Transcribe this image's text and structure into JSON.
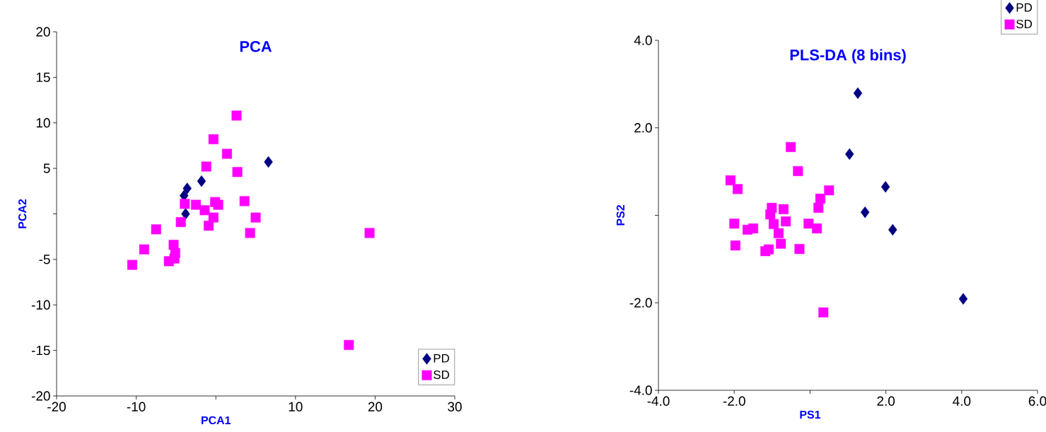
{
  "chart_data": [
    {
      "type": "scatter",
      "title": "PCA",
      "xlabel": "PCA1",
      "ylabel": "PCA2",
      "xlim": [
        -20,
        30
      ],
      "ylim": [
        -20,
        20
      ],
      "xticks": [
        -20,
        -10,
        {
          "value": 0,
          "label": null
        },
        10,
        20,
        30
      ],
      "yticks": [
        -20,
        -15,
        -10,
        -5,
        {
          "value": 0,
          "label": null
        },
        5,
        10,
        15,
        20
      ],
      "legend": "bottom right",
      "series": [
        {
          "name": "PD",
          "color": "#000080",
          "marker": "diamond",
          "x": [
            6.6,
            -1.8,
            -3.6,
            -4.0,
            -3.8
          ],
          "values": [
            5.7,
            3.6,
            2.8,
            2.0,
            0.0
          ]
        },
        {
          "name": "SD",
          "color": "#ff00ff",
          "marker": "square",
          "x": [
            2.6,
            -0.3,
            1.4,
            -1.2,
            2.7,
            -3.9,
            -2.5,
            -0.1,
            0.3,
            -1.4,
            -0.3,
            3.6,
            5.0,
            4.3,
            -0.9,
            -4.4,
            -7.5,
            -9.0,
            -10.5,
            -5.3,
            -5.1,
            -5.9,
            -5.2,
            19.3,
            16.7
          ],
          "values": [
            10.8,
            8.2,
            6.6,
            5.2,
            4.6,
            1.1,
            1.0,
            1.3,
            1.0,
            0.4,
            -0.4,
            1.4,
            -0.4,
            -2.1,
            -1.3,
            -0.9,
            -1.7,
            -3.9,
            -5.6,
            -3.4,
            -4.3,
            -5.2,
            -4.9,
            -2.1,
            -14.4
          ]
        }
      ]
    },
    {
      "type": "scatter",
      "title": "PLS-DA (8 bins)",
      "xlabel": "PS1",
      "ylabel": "PS2",
      "xlim": [
        -4,
        6
      ],
      "ylim": [
        -4,
        4
      ],
      "xticks": [
        {
          "value": -4,
          "label": "-4.0"
        },
        {
          "value": -2,
          "label": "-2.0"
        },
        {
          "value": 0,
          "label": null
        },
        {
          "value": 2,
          "label": "2.0"
        },
        {
          "value": 4,
          "label": "4.0"
        },
        {
          "value": 6,
          "label": "6.0"
        }
      ],
      "yticks": [
        {
          "value": -4,
          "label": "-4.0"
        },
        {
          "value": -2,
          "label": "-2.0"
        },
        {
          "value": 0,
          "label": null
        },
        {
          "value": 2,
          "label": "2.0"
        },
        {
          "value": 4,
          "label": "4.0"
        }
      ],
      "legend": "top right",
      "series": [
        {
          "name": "PD",
          "color": "#000080",
          "marker": "diamond",
          "x": [
            1.26,
            1.04,
            1.99,
            1.45,
            2.18,
            4.04
          ],
          "values": [
            2.79,
            1.4,
            0.65,
            0.07,
            -0.33,
            -1.91
          ]
        },
        {
          "name": "SD",
          "color": "#ff00ff",
          "marker": "square",
          "x": [
            -0.51,
            -0.32,
            -2.1,
            -1.91,
            0.5,
            0.27,
            0.22,
            -1.01,
            -0.7,
            -1.05,
            -0.64,
            -0.96,
            -2.0,
            -0.04,
            0.18,
            -1.65,
            -1.5,
            -0.83,
            -0.77,
            -1.97,
            -1.18,
            -1.09,
            -0.28,
            0.35
          ],
          "values": [
            1.56,
            1.01,
            0.8,
            0.6,
            0.57,
            0.38,
            0.17,
            0.17,
            0.14,
            0.02,
            -0.14,
            -0.2,
            -0.19,
            -0.19,
            -0.3,
            -0.33,
            -0.3,
            -0.41,
            -0.65,
            -0.69,
            -0.82,
            -0.78,
            -0.77,
            -2.22
          ]
        }
      ]
    }
  ]
}
